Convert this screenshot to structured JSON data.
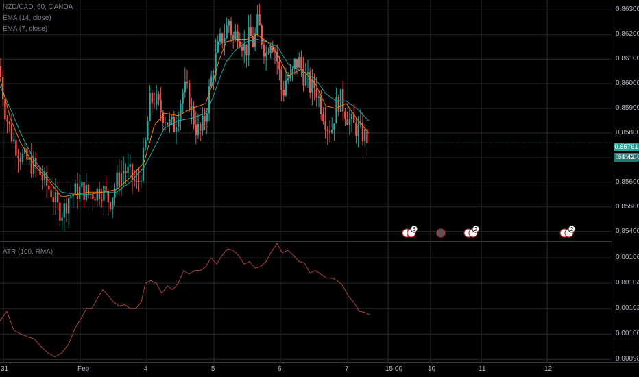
{
  "legend": {
    "symbol": "NZD/CAD, 60, OANDA",
    "ema14": "EMA (14, close)",
    "ema7": "EMA (7, close)",
    "atr": "ATR (100, RMA)"
  },
  "colors": {
    "up": "#26a69a",
    "down": "#ef5350",
    "ema14": "#26a69a",
    "ema7": "#f57c00",
    "atr": "#b0413e",
    "grid": "#2a2a2a",
    "tag": "#26a69a"
  },
  "price_tag": {
    "price": "0.85761",
    "countdown": "51:42"
  },
  "chart_data": [
    {
      "type": "candlestick",
      "title": "NZD/CAD, 60, OANDA",
      "ylim": [
        0.8536,
        0.8634
      ],
      "y_ticks": [
        "0.86300",
        "0.86200",
        "0.86100",
        "0.86000",
        "0.85900",
        "0.85800",
        "0.85700",
        "0.85600",
        "0.85500",
        "0.85400"
      ],
      "x_ticks": [
        "31",
        "Feb",
        "4",
        "5",
        "6",
        "7",
        "15:00",
        "10",
        "11",
        "12"
      ],
      "x_tick_values": [
        5,
        117,
        214,
        312,
        409,
        507,
        566,
        628,
        702,
        798
      ],
      "close_path": [
        [
          0,
          0.8605
        ],
        [
          8,
          0.8588
        ],
        [
          18,
          0.8578
        ],
        [
          30,
          0.8571
        ],
        [
          42,
          0.8568
        ],
        [
          55,
          0.8565
        ],
        [
          65,
          0.856
        ],
        [
          75,
          0.8556
        ],
        [
          85,
          0.8549
        ],
        [
          92,
          0.8548
        ],
        [
          100,
          0.8554
        ],
        [
          110,
          0.8556
        ],
        [
          120,
          0.8557
        ],
        [
          130,
          0.8555
        ],
        [
          140,
          0.8556
        ],
        [
          150,
          0.8557
        ],
        [
          160,
          0.8552
        ],
        [
          170,
          0.856
        ],
        [
          180,
          0.8565
        ],
        [
          190,
          0.8563
        ],
        [
          200,
          0.8558
        ],
        [
          207,
          0.8566
        ],
        [
          212,
          0.8575
        ],
        [
          218,
          0.8592
        ],
        [
          225,
          0.8594
        ],
        [
          232,
          0.859
        ],
        [
          240,
          0.8587
        ],
        [
          248,
          0.8583
        ],
        [
          255,
          0.8583
        ],
        [
          262,
          0.8592
        ],
        [
          268,
          0.8598
        ],
        [
          274,
          0.8596
        ],
        [
          280,
          0.8588
        ],
        [
          286,
          0.8582
        ],
        [
          292,
          0.858
        ],
        [
          298,
          0.8585
        ],
        [
          304,
          0.8595
        ],
        [
          310,
          0.8605
        ],
        [
          316,
          0.8612
        ],
        [
          322,
          0.8618
        ],
        [
          328,
          0.862
        ],
        [
          334,
          0.8626
        ],
        [
          340,
          0.8617
        ],
        [
          346,
          0.8622
        ],
        [
          352,
          0.8618
        ],
        [
          358,
          0.8613
        ],
        [
          364,
          0.862
        ],
        [
          370,
          0.8616
        ],
        [
          376,
          0.8625
        ],
        [
          382,
          0.8618
        ],
        [
          388,
          0.8612
        ],
        [
          394,
          0.8619
        ],
        [
          400,
          0.8615
        ],
        [
          406,
          0.8607
        ],
        [
          412,
          0.8595
        ],
        [
          418,
          0.8603
        ],
        [
          424,
          0.8601
        ],
        [
          430,
          0.8608
        ],
        [
          436,
          0.8609
        ],
        [
          442,
          0.8604
        ],
        [
          448,
          0.8601
        ],
        [
          454,
          0.8598
        ],
        [
          460,
          0.8599
        ],
        [
          466,
          0.8593
        ],
        [
          472,
          0.8588
        ],
        [
          478,
          0.8583
        ],
        [
          484,
          0.8582
        ],
        [
          490,
          0.8591
        ],
        [
          496,
          0.8594
        ],
        [
          502,
          0.859
        ],
        [
          508,
          0.8586
        ],
        [
          514,
          0.8583
        ],
        [
          520,
          0.8582
        ],
        [
          526,
          0.858
        ],
        [
          532,
          0.8579
        ],
        [
          538,
          0.85761
        ]
      ],
      "ema14_path": [
        [
          0,
          0.8599
        ],
        [
          15,
          0.859
        ],
        [
          30,
          0.858
        ],
        [
          50,
          0.8569
        ],
        [
          70,
          0.8562
        ],
        [
          90,
          0.8556
        ],
        [
          110,
          0.8555
        ],
        [
          130,
          0.8555
        ],
        [
          150,
          0.8556
        ],
        [
          170,
          0.8556
        ],
        [
          190,
          0.856
        ],
        [
          210,
          0.8566
        ],
        [
          225,
          0.8574
        ],
        [
          240,
          0.8582
        ],
        [
          260,
          0.8585
        ],
        [
          280,
          0.8586
        ],
        [
          300,
          0.8588
        ],
        [
          310,
          0.8594
        ],
        [
          320,
          0.8602
        ],
        [
          330,
          0.8609
        ],
        [
          345,
          0.8614
        ],
        [
          360,
          0.8617
        ],
        [
          375,
          0.8618
        ],
        [
          390,
          0.8617
        ],
        [
          405,
          0.8615
        ],
        [
          420,
          0.8608
        ],
        [
          440,
          0.8605
        ],
        [
          460,
          0.8602
        ],
        [
          475,
          0.8596
        ],
        [
          490,
          0.8593
        ],
        [
          505,
          0.8593
        ],
        [
          520,
          0.859
        ],
        [
          538,
          0.8585
        ]
      ],
      "ema7_path": [
        [
          0,
          0.8602
        ],
        [
          15,
          0.8586
        ],
        [
          30,
          0.8576
        ],
        [
          50,
          0.8567
        ],
        [
          70,
          0.8561
        ],
        [
          90,
          0.8554
        ],
        [
          110,
          0.8555
        ],
        [
          130,
          0.8556
        ],
        [
          150,
          0.8556
        ],
        [
          170,
          0.8557
        ],
        [
          190,
          0.8562
        ],
        [
          210,
          0.8568
        ],
        [
          225,
          0.8583
        ],
        [
          240,
          0.8588
        ],
        [
          260,
          0.8587
        ],
        [
          280,
          0.859
        ],
        [
          300,
          0.8592
        ],
        [
          310,
          0.86
        ],
        [
          320,
          0.861
        ],
        [
          330,
          0.8617
        ],
        [
          345,
          0.8618
        ],
        [
          360,
          0.8618
        ],
        [
          375,
          0.862
        ],
        [
          390,
          0.8617
        ],
        [
          405,
          0.8612
        ],
        [
          420,
          0.8603
        ],
        [
          440,
          0.8606
        ],
        [
          460,
          0.86
        ],
        [
          475,
          0.8591
        ],
        [
          490,
          0.859
        ],
        [
          505,
          0.8592
        ],
        [
          520,
          0.8586
        ],
        [
          538,
          0.858
        ]
      ],
      "x_last": 538
    },
    {
      "type": "line",
      "title": "ATR (100, RMA)",
      "ylim": [
        0.000978,
        0.001073
      ],
      "y_ticks": [
        "0.00106",
        "0.00104",
        "0.00102",
        "0.00100",
        "0.00098"
      ],
      "x": [
        0,
        10,
        20,
        30,
        40,
        50,
        60,
        70,
        80,
        90,
        100,
        110,
        118,
        126,
        134,
        142,
        150,
        158,
        166,
        174,
        182,
        190,
        198,
        206,
        212,
        220,
        228,
        236,
        244,
        252,
        260,
        268,
        276,
        284,
        292,
        300,
        308,
        316,
        324,
        332,
        340,
        348,
        356,
        364,
        372,
        380,
        388,
        396,
        404,
        412,
        420,
        428,
        436,
        444,
        452,
        460,
        468,
        476,
        484,
        492,
        500,
        508,
        516,
        524,
        532,
        540
      ],
      "values": [
        0.00101,
        0.001018,
        0.001003,
        0.001,
        0.000998,
        0.000996,
        0.00099,
        0.000985,
        0.000982,
        0.000985,
        0.000992,
        0.001005,
        0.001012,
        0.00102,
        0.00102,
        0.001028,
        0.001035,
        0.00103,
        0.001025,
        0.001022,
        0.001023,
        0.00102,
        0.00102,
        0.001025,
        0.00104,
        0.001042,
        0.00104,
        0.001032,
        0.001038,
        0.001035,
        0.00104,
        0.00105,
        0.001047,
        0.00105,
        0.00105,
        0.001053,
        0.00106,
        0.001055,
        0.001062,
        0.001067,
        0.001066,
        0.001062,
        0.001055,
        0.001057,
        0.001052,
        0.001053,
        0.001057,
        0.001065,
        0.001071,
        0.001064,
        0.001066,
        0.001062,
        0.001057,
        0.001056,
        0.001048,
        0.00105,
        0.001047,
        0.001044,
        0.001044,
        0.001042,
        0.001038,
        0.00103,
        0.001025,
        0.001018,
        0.001017,
        0.001015
      ]
    }
  ],
  "events": [
    {
      "kind": "cluster",
      "count": "6",
      "x": 596
    },
    {
      "kind": "single",
      "x": 643
    },
    {
      "kind": "cluster",
      "count": "2",
      "x": 686
    },
    {
      "kind": "cluster",
      "count": "2",
      "x": 826
    }
  ]
}
